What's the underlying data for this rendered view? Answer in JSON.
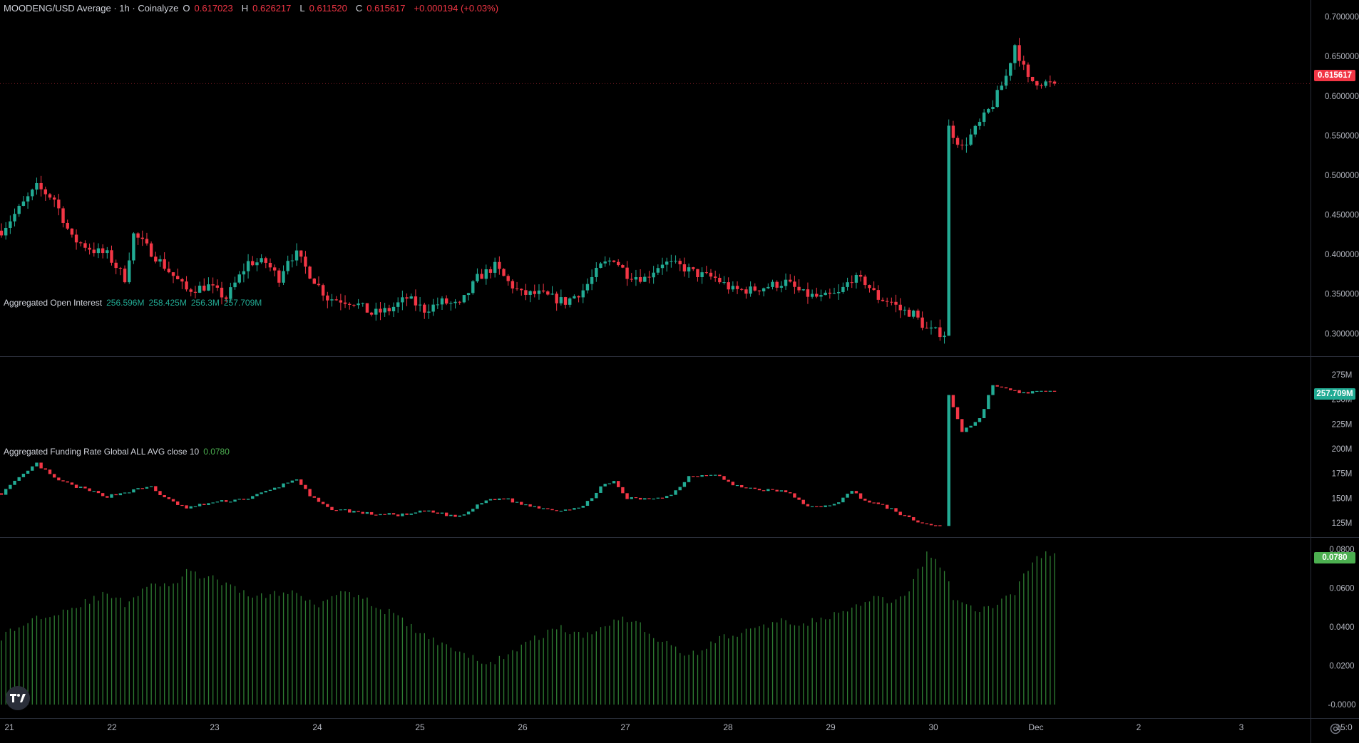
{
  "header": {
    "symbol": "MOODENG/USD Average · 1h · Coinalyze",
    "ohlc": {
      "o_label": "O",
      "o": "0.617023",
      "h_label": "H",
      "h": "0.626217",
      "l_label": "L",
      "l": "0.611520",
      "c_label": "C",
      "c": "0.615617",
      "change": "+0.000194 (+0.03%)"
    }
  },
  "oi_legend": {
    "title": "Aggregated Open Interest",
    "values": [
      "256.596M",
      "258.425M",
      "256.3M",
      "257.709M"
    ]
  },
  "funding_legend": {
    "title": "Aggregated Funding Rate Global ALL AVG close 10",
    "value": "0.0780"
  },
  "price_tags": {
    "price": "0.615617",
    "oi": "257.709M",
    "funding": "0.0780"
  },
  "colors": {
    "up": "#22ab94",
    "down": "#f23645",
    "funding_bar": "#2e7d32",
    "funding_tag": "#4caf50",
    "grid": "#1e222d",
    "axis_text": "#b2b5be",
    "separator": "#2a2e39"
  },
  "icons": {
    "logo": "tradingview-logo-icon",
    "settings": "gear-icon"
  },
  "chart_data": [
    {
      "type": "candlestick",
      "title": "MOODENG/USD Average · 1h · Coinalyze",
      "x_ticks": [
        "21",
        "22",
        "23",
        "24",
        "25",
        "26",
        "27",
        "28",
        "29",
        "30",
        "Dec",
        "2",
        "3",
        "15:0"
      ],
      "y_ticks": [
        "0.700000",
        "0.650000",
        "0.600000",
        "0.550000",
        "0.500000",
        "0.450000",
        "0.400000",
        "0.350000",
        "0.300000"
      ],
      "ylim": [
        0.285,
        0.705
      ],
      "last_value": 0.615617,
      "close_path": [
        [
          0,
          0.43
        ],
        [
          8,
          0.485
        ],
        [
          12,
          0.47
        ],
        [
          16,
          0.42
        ],
        [
          21,
          0.405
        ],
        [
          24,
          0.4
        ],
        [
          28,
          0.37
        ],
        [
          30,
          0.425
        ],
        [
          32,
          0.415
        ],
        [
          37,
          0.385
        ],
        [
          42,
          0.355
        ],
        [
          47,
          0.36
        ],
        [
          51,
          0.345
        ],
        [
          56,
          0.39
        ],
        [
          60,
          0.39
        ],
        [
          63,
          0.37
        ],
        [
          65,
          0.395
        ],
        [
          67,
          0.4
        ],
        [
          70,
          0.375
        ],
        [
          74,
          0.345
        ],
        [
          80,
          0.34
        ],
        [
          84,
          0.325
        ],
        [
          88,
          0.33
        ],
        [
          92,
          0.345
        ],
        [
          96,
          0.33
        ],
        [
          100,
          0.34
        ],
        [
          104,
          0.335
        ],
        [
          108,
          0.37
        ],
        [
          112,
          0.385
        ],
        [
          115,
          0.365
        ],
        [
          118,
          0.35
        ],
        [
          122,
          0.35
        ],
        [
          128,
          0.34
        ],
        [
          132,
          0.355
        ],
        [
          136,
          0.385
        ],
        [
          139,
          0.395
        ],
        [
          142,
          0.375
        ],
        [
          146,
          0.37
        ],
        [
          150,
          0.39
        ],
        [
          154,
          0.385
        ],
        [
          158,
          0.375
        ],
        [
          162,
          0.37
        ],
        [
          166,
          0.355
        ],
        [
          170,
          0.355
        ],
        [
          174,
          0.36
        ],
        [
          178,
          0.365
        ],
        [
          182,
          0.35
        ],
        [
          186,
          0.345
        ],
        [
          190,
          0.35
        ],
        [
          193,
          0.37
        ],
        [
          196,
          0.365
        ],
        [
          199,
          0.345
        ],
        [
          202,
          0.34
        ],
        [
          204,
          0.33
        ],
        [
          207,
          0.325
        ],
        [
          210,
          0.305
        ],
        [
          214,
          0.3
        ],
        [
          215,
          0.56
        ],
        [
          218,
          0.535
        ],
        [
          222,
          0.565
        ],
        [
          225,
          0.59
        ],
        [
          228,
          0.625
        ],
        [
          230,
          0.665
        ],
        [
          233,
          0.62
        ],
        [
          238,
          0.6156
        ]
      ]
    },
    {
      "type": "candlestick",
      "title": "Aggregated Open Interest",
      "y_ticks": [
        "275M",
        "250M",
        "225M",
        "200M",
        "175M",
        "150M",
        "125M"
      ],
      "ylim": [
        115,
        285
      ],
      "last_value": 257.709,
      "close_path": [
        [
          0,
          155
        ],
        [
          8,
          185
        ],
        [
          12,
          170
        ],
        [
          16,
          163
        ],
        [
          24,
          152
        ],
        [
          30,
          158
        ],
        [
          34,
          162
        ],
        [
          37,
          150
        ],
        [
          42,
          140
        ],
        [
          47,
          145
        ],
        [
          56,
          150
        ],
        [
          62,
          160
        ],
        [
          67,
          170
        ],
        [
          70,
          152
        ],
        [
          74,
          140
        ],
        [
          84,
          134
        ],
        [
          92,
          133
        ],
        [
          96,
          137
        ],
        [
          104,
          131
        ],
        [
          110,
          148
        ],
        [
          114,
          150
        ],
        [
          118,
          144
        ],
        [
          126,
          138
        ],
        [
          132,
          141
        ],
        [
          136,
          162
        ],
        [
          139,
          166
        ],
        [
          142,
          150
        ],
        [
          146,
          149
        ],
        [
          152,
          153
        ],
        [
          156,
          172
        ],
        [
          162,
          175
        ],
        [
          166,
          163
        ],
        [
          170,
          160
        ],
        [
          174,
          158
        ],
        [
          178,
          157
        ],
        [
          182,
          144
        ],
        [
          186,
          140
        ],
        [
          190,
          147
        ],
        [
          193,
          157
        ],
        [
          196,
          148
        ],
        [
          202,
          139
        ],
        [
          207,
          127
        ],
        [
          212,
          122
        ],
        [
          214,
          122
        ],
        [
          215,
          255
        ],
        [
          218,
          218
        ],
        [
          222,
          230
        ],
        [
          225,
          265
        ],
        [
          228,
          260
        ],
        [
          231,
          257
        ],
        [
          238,
          257.7
        ]
      ],
      "gap_after_index": 213,
      "gap_until_index": 215
    },
    {
      "type": "bar",
      "title": "Aggregated Funding Rate Global ALL AVG close 10",
      "y_ticks": [
        "0.0800",
        "0.0600",
        "0.0400",
        "0.0200",
        "-0.0000"
      ],
      "ylim": [
        -0.004,
        0.083
      ],
      "last_value": 0.078,
      "value_path": [
        [
          0,
          0.035
        ],
        [
          8,
          0.045
        ],
        [
          16,
          0.05
        ],
        [
          24,
          0.057
        ],
        [
          28,
          0.052
        ],
        [
          34,
          0.063
        ],
        [
          38,
          0.06
        ],
        [
          42,
          0.068
        ],
        [
          48,
          0.065
        ],
        [
          54,
          0.058
        ],
        [
          60,
          0.056
        ],
        [
          66,
          0.058
        ],
        [
          72,
          0.052
        ],
        [
          78,
          0.06
        ],
        [
          84,
          0.052
        ],
        [
          90,
          0.045
        ],
        [
          96,
          0.035
        ],
        [
          102,
          0.03
        ],
        [
          106,
          0.025
        ],
        [
          110,
          0.02
        ],
        [
          114,
          0.025
        ],
        [
          118,
          0.03
        ],
        [
          122,
          0.035
        ],
        [
          126,
          0.04
        ],
        [
          132,
          0.035
        ],
        [
          136,
          0.04
        ],
        [
          140,
          0.045
        ],
        [
          144,
          0.043
        ],
        [
          148,
          0.035
        ],
        [
          152,
          0.03
        ],
        [
          156,
          0.025
        ],
        [
          160,
          0.03
        ],
        [
          164,
          0.035
        ],
        [
          170,
          0.038
        ],
        [
          176,
          0.043
        ],
        [
          182,
          0.042
        ],
        [
          188,
          0.045
        ],
        [
          194,
          0.05
        ],
        [
          198,
          0.055
        ],
        [
          202,
          0.052
        ],
        [
          206,
          0.058
        ],
        [
          210,
          0.078
        ],
        [
          214,
          0.07
        ],
        [
          216,
          0.055
        ],
        [
          222,
          0.048
        ],
        [
          226,
          0.052
        ],
        [
          230,
          0.058
        ],
        [
          234,
          0.075
        ],
        [
          238,
          0.078
        ]
      ]
    }
  ]
}
